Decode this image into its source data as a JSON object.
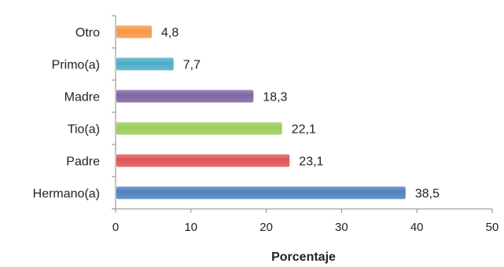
{
  "chart_data": {
    "type": "bar",
    "orientation": "horizontal",
    "categories": [
      "Hermano(a)",
      "Padre",
      "Tio(a)",
      "Madre",
      "Primo(a)",
      "Otro"
    ],
    "values": [
      38.5,
      23.1,
      22.1,
      18.3,
      7.7,
      4.8
    ],
    "value_labels": [
      "38,5",
      "23,1",
      "22,1",
      "18,3",
      "7,7",
      "4,8"
    ],
    "colors": [
      "#4f81bd",
      "#e05555",
      "#9bcc5a",
      "#8064a2",
      "#4bacc6",
      "#f79646"
    ],
    "xlabel": "Porcentaje",
    "xlim": [
      0,
      50
    ],
    "xticks": [
      0,
      10,
      20,
      30,
      40,
      50
    ],
    "grid": false,
    "legend": "none"
  }
}
